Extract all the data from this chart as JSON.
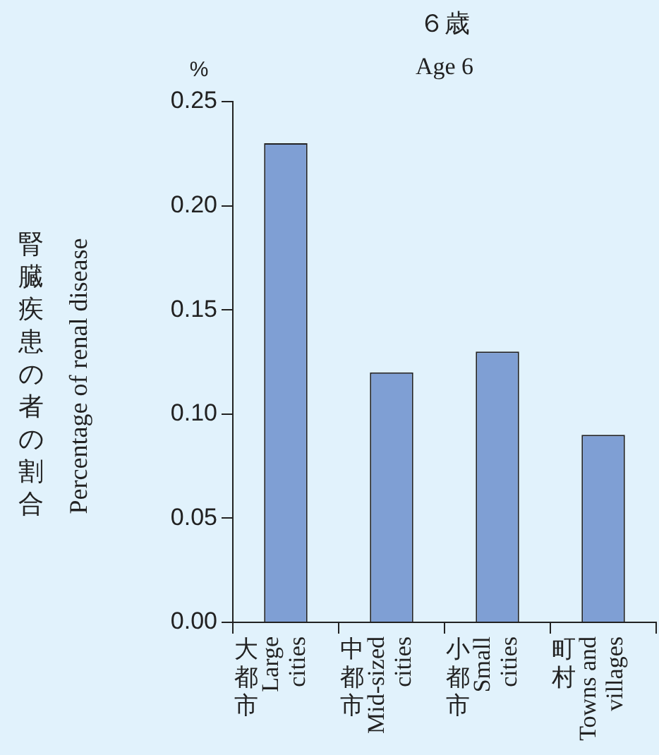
{
  "chart_data": {
    "type": "bar",
    "title": "６歳",
    "subtitle": "Age 6",
    "ylabel": "腎臓疾患の者の割合 Percentage of renal disease",
    "annotations": [
      "%"
    ],
    "categories": [
      "大都市 Large cities",
      "中都市 Mid-sized cities",
      "小都市 Small cities",
      "町村 Towns and villages"
    ],
    "values": [
      0.23,
      0.12,
      0.13,
      0.09
    ],
    "color": "#7f9fd4",
    "ylim": [
      0,
      0.25
    ],
    "yticks": [
      {
        "value": 0,
        "label": "0.00"
      },
      {
        "value": 0.05,
        "label": "0.05"
      },
      {
        "value": 0.1,
        "label": "0.10"
      },
      {
        "value": 0.15,
        "label": "0.15"
      },
      {
        "value": 0.2,
        "label": "0.20"
      },
      {
        "value": 0.25,
        "label": "0.25"
      }
    ]
  }
}
